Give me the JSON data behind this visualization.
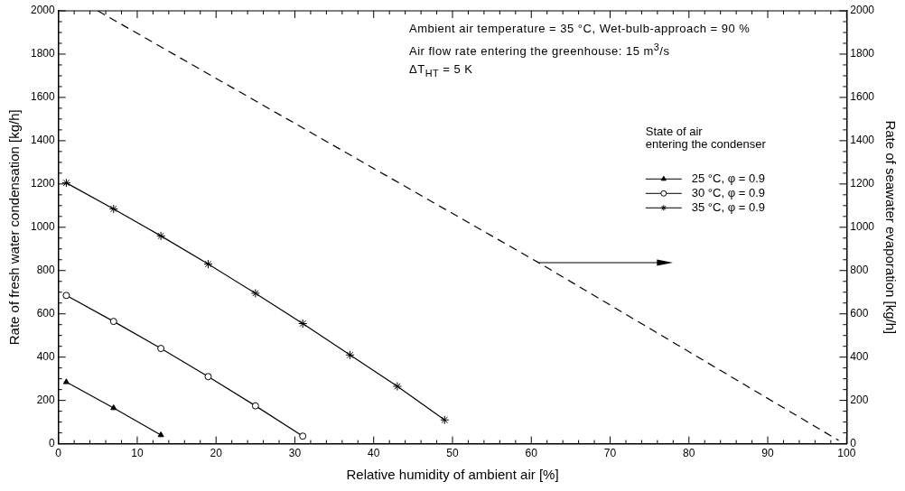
{
  "chart_data": {
    "type": "line",
    "xlabel": "Relative humidity of ambient air [%]",
    "ylabel": "Rate of fresh water condensation [kg/h]",
    "y2label": "Rate of seawater evaporation [kg/h]",
    "legend_title": "State of air\nentering the condenser",
    "legend": "right",
    "grid": false,
    "annotations": [
      "Ambient air temperature = 35 °C, Wet-bulb-approach = 90 %",
      "Air flow rate entering the greenhouse: 15 m$^{3}$/s",
      "ΔT$_{HT}$ = 5 K"
    ],
    "xlim": [
      0,
      100
    ],
    "xticks": [
      0,
      {
        "value": 2,
        "label": null
      },
      {
        "value": 4,
        "label": null
      },
      {
        "value": 6,
        "label": null
      },
      {
        "value": 8,
        "label": null
      },
      10,
      {
        "value": 12,
        "label": null
      },
      {
        "value": 14,
        "label": null
      },
      {
        "value": 16,
        "label": null
      },
      {
        "value": 18,
        "label": null
      },
      20,
      {
        "value": 22,
        "label": null
      },
      {
        "value": 24,
        "label": null
      },
      {
        "value": 26,
        "label": null
      },
      {
        "value": 28,
        "label": null
      },
      30,
      {
        "value": 32,
        "label": null
      },
      {
        "value": 34,
        "label": null
      },
      {
        "value": 36,
        "label": null
      },
      {
        "value": 38,
        "label": null
      },
      40,
      {
        "value": 42,
        "label": null
      },
      {
        "value": 44,
        "label": null
      },
      {
        "value": 46,
        "label": null
      },
      {
        "value": 48,
        "label": null
      },
      50,
      {
        "value": 52,
        "label": null
      },
      {
        "value": 54,
        "label": null
      },
      {
        "value": 56,
        "label": null
      },
      {
        "value": 58,
        "label": null
      },
      60,
      {
        "value": 62,
        "label": null
      },
      {
        "value": 64,
        "label": null
      },
      {
        "value": 66,
        "label": null
      },
      {
        "value": 68,
        "label": null
      },
      70,
      {
        "value": 72,
        "label": null
      },
      {
        "value": 74,
        "label": null
      },
      {
        "value": 76,
        "label": null
      },
      {
        "value": 78,
        "label": null
      },
      80,
      {
        "value": 82,
        "label": null
      },
      {
        "value": 84,
        "label": null
      },
      {
        "value": 86,
        "label": null
      },
      {
        "value": 88,
        "label": null
      },
      90,
      {
        "value": 92,
        "label": null
      },
      {
        "value": 94,
        "label": null
      },
      {
        "value": 96,
        "label": null
      },
      {
        "value": 98,
        "label": null
      },
      100
    ],
    "ylim": [
      0,
      2000
    ],
    "yticks": [
      0,
      {
        "value": 50,
        "label": null
      },
      {
        "value": 100,
        "label": null
      },
      {
        "value": 150,
        "label": null
      },
      200,
      {
        "value": 250,
        "label": null
      },
      {
        "value": 300,
        "label": null
      },
      {
        "value": 350,
        "label": null
      },
      400,
      {
        "value": 450,
        "label": null
      },
      {
        "value": 500,
        "label": null
      },
      {
        "value": 550,
        "label": null
      },
      600,
      {
        "value": 650,
        "label": null
      },
      {
        "value": 700,
        "label": null
      },
      {
        "value": 750,
        "label": null
      },
      800,
      {
        "value": 850,
        "label": null
      },
      {
        "value": 900,
        "label": null
      },
      {
        "value": 950,
        "label": null
      },
      1000,
      {
        "value": 1050,
        "label": null
      },
      {
        "value": 1100,
        "label": null
      },
      {
        "value": 1150,
        "label": null
      },
      1200,
      {
        "value": 1250,
        "label": null
      },
      {
        "value": 1300,
        "label": null
      },
      {
        "value": 1350,
        "label": null
      },
      1400,
      {
        "value": 1450,
        "label": null
      },
      {
        "value": 1500,
        "label": null
      },
      {
        "value": 1550,
        "label": null
      },
      1600,
      {
        "value": 1650,
        "label": null
      },
      {
        "value": 1700,
        "label": null
      },
      {
        "value": 1750,
        "label": null
      },
      1800,
      {
        "value": 1850,
        "label": null
      },
      {
        "value": 1900,
        "label": null
      },
      {
        "value": 1950,
        "label": null
      },
      2000
    ],
    "y2lim": [
      0,
      2000
    ],
    "y2ticks": [
      0,
      {
        "value": 50,
        "label": null
      },
      {
        "value": 100,
        "label": null
      },
      {
        "value": 150,
        "label": null
      },
      200,
      {
        "value": 250,
        "label": null
      },
      {
        "value": 300,
        "label": null
      },
      {
        "value": 350,
        "label": null
      },
      400,
      {
        "value": 450,
        "label": null
      },
      {
        "value": 500,
        "label": null
      },
      {
        "value": 550,
        "label": null
      },
      600,
      {
        "value": 650,
        "label": null
      },
      {
        "value": 700,
        "label": null
      },
      {
        "value": 750,
        "label": null
      },
      800,
      {
        "value": 850,
        "label": null
      },
      {
        "value": 900,
        "label": null
      },
      {
        "value": 950,
        "label": null
      },
      1000,
      {
        "value": 1050,
        "label": null
      },
      {
        "value": 1100,
        "label": null
      },
      {
        "value": 1150,
        "label": null
      },
      1200,
      {
        "value": 1250,
        "label": null
      },
      {
        "value": 1300,
        "label": null
      },
      {
        "value": 1350,
        "label": null
      },
      1400,
      {
        "value": 1450,
        "label": null
      },
      {
        "value": 1500,
        "label": null
      },
      {
        "value": 1550,
        "label": null
      },
      1600,
      {
        "value": 1650,
        "label": null
      },
      {
        "value": 1700,
        "label": null
      },
      {
        "value": 1750,
        "label": null
      },
      1800,
      {
        "value": 1850,
        "label": null
      },
      {
        "value": 1900,
        "label": null
      },
      {
        "value": 1950,
        "label": null
      },
      2000
    ],
    "series": [
      {
        "name": "25 °C, φ = 0.9",
        "color": "#000000",
        "marker": "triangle",
        "line_style": "solid",
        "x": [
          1,
          7,
          13
        ],
        "values": [
          285,
          165,
          40
        ]
      },
      {
        "name": "30 °C, φ = 0.9",
        "color": "#000000",
        "marker": "circle",
        "line_style": "solid",
        "x": [
          1,
          7,
          13,
          19,
          25,
          31
        ],
        "values": [
          685,
          565,
          440,
          310,
          175,
          35
        ]
      },
      {
        "name": "35 °C, φ = 0.9",
        "color": "#000000",
        "marker": "cross",
        "line_style": "solid",
        "x": [
          1,
          7,
          13,
          19,
          25,
          31,
          37,
          43,
          49
        ],
        "values": [
          1205,
          1085,
          960,
          830,
          695,
          555,
          410,
          265,
          110
        ]
      },
      {
        "color": "#000000",
        "marker": "none",
        "line_style": "dashed",
        "axis": "y2",
        "x": [
          5,
          61,
          99
        ],
        "values": [
          2000,
          835,
          15
        ]
      }
    ]
  }
}
